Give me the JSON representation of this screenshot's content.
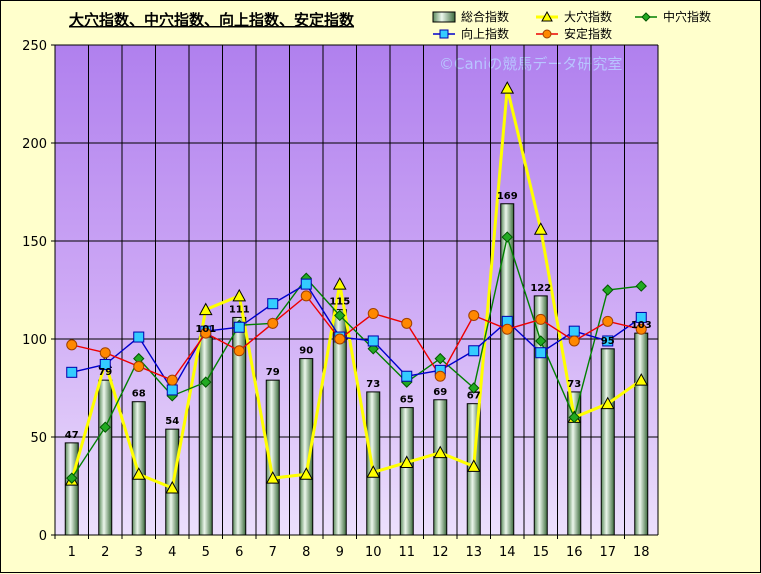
{
  "chart_data": {
    "type": "bar",
    "title": "大穴指数、中穴指数、向上指数、安定指数",
    "watermark": "©Caniの競馬データ研究室",
    "categories": [
      "1",
      "2",
      "3",
      "4",
      "5",
      "6",
      "7",
      "8",
      "9",
      "10",
      "11",
      "12",
      "13",
      "14",
      "15",
      "16",
      "17",
      "18"
    ],
    "ylim": [
      0,
      250
    ],
    "yticks": [
      0,
      50,
      100,
      150,
      200,
      250
    ],
    "grid": true,
    "legend_position": "top-right",
    "series": [
      {
        "name": "総合指数",
        "kind": "bar",
        "color": "#3f6f3f",
        "values": [
          47,
          79,
          68,
          54,
          101,
          111,
          79,
          90,
          115,
          73,
          65,
          69,
          67,
          169,
          122,
          73,
          95,
          103
        ],
        "labels": [
          "47",
          "79",
          "68",
          "54",
          "101",
          "111",
          "79",
          "90",
          "115",
          "73",
          "65",
          "69",
          "67",
          "169",
          "122",
          "73",
          "95",
          "103"
        ]
      },
      {
        "name": "大穴指数",
        "kind": "line",
        "color": "#ffff00",
        "marker": "triangle",
        "marker_fill": "#ffff00",
        "values": [
          28,
          88,
          31,
          24,
          115,
          122,
          29,
          31,
          128,
          32,
          37,
          42,
          35,
          228,
          156,
          60,
          67,
          79
        ]
      },
      {
        "name": "中穴指数",
        "kind": "line",
        "color": "#008000",
        "marker": "diamond",
        "marker_fill": "#22aa22",
        "values": [
          29,
          55,
          90,
          71,
          78,
          107,
          108,
          131,
          112,
          95,
          78,
          90,
          75,
          152,
          99,
          60,
          125,
          127
        ]
      },
      {
        "name": "向上指数",
        "kind": "line",
        "color": "#0000cc",
        "marker": "square",
        "marker_fill": "#33ccff",
        "values": [
          83,
          87,
          101,
          74,
          104,
          106,
          118,
          128,
          101,
          99,
          81,
          84,
          94,
          109,
          93,
          104,
          99,
          111
        ]
      },
      {
        "name": "安定指数",
        "kind": "line",
        "color": "#ee0000",
        "marker": "circle",
        "marker_fill": "#ff8800",
        "values": [
          97,
          93,
          86,
          79,
          103,
          94,
          108,
          122,
          100,
          113,
          108,
          81,
          112,
          105,
          110,
          99,
          109,
          105
        ]
      }
    ]
  }
}
